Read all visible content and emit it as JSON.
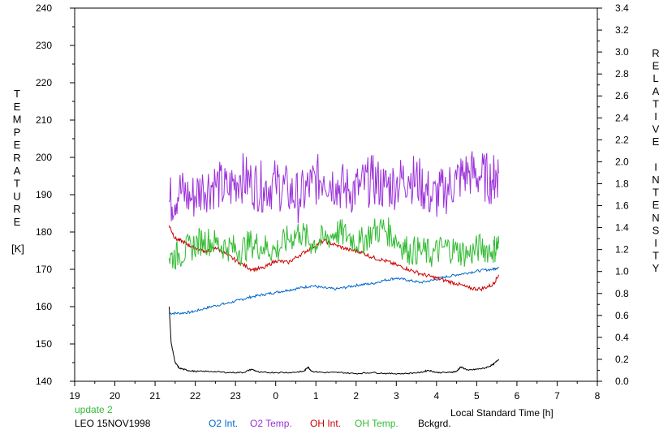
{
  "chart_data": {
    "type": "line",
    "title": "",
    "xlabel": "Local Standard Time [h]",
    "ylabel_left": "TEMPERATURE",
    "ylabel_left_unit": "[K]",
    "ylabel_right": "RELATIVE INTENSITY",
    "x_ticks": [
      "19",
      "20",
      "21",
      "22",
      "23",
      "0",
      "1",
      "2",
      "3",
      "4",
      "5",
      "6",
      "7",
      "8"
    ],
    "xlim": [
      19,
      32
    ],
    "ylim_left": [
      140,
      240
    ],
    "yticks_left": [
      "140",
      "150",
      "160",
      "170",
      "180",
      "190",
      "200",
      "210",
      "220",
      "230",
      "240"
    ],
    "ylim_right": [
      0.0,
      3.4
    ],
    "yticks_right": [
      "0.0",
      "0.2",
      "0.4",
      "0.6",
      "0.8",
      "1.0",
      "1.2",
      "1.4",
      "1.6",
      "1.8",
      "2.0",
      "2.2",
      "2.4",
      "2.6",
      "2.8",
      "3.0",
      "3.2",
      "3.4"
    ],
    "status_text": "update 2",
    "site_date": "LEO 15NOV1998",
    "series": [
      {
        "name": "O2 Int.",
        "axis": "right",
        "color": "#0066cc",
        "x": [
          21.35,
          21.6,
          21.9,
          22.2,
          22.5,
          22.8,
          23.1,
          23.4,
          23.7,
          24.0,
          24.3,
          24.6,
          24.9,
          25.2,
          25.5,
          25.8,
          26.1,
          26.4,
          26.7,
          27.0,
          27.3,
          27.6,
          27.9,
          28.2,
          28.5,
          28.8,
          29.1,
          29.4,
          29.55
        ],
        "y": [
          0.62,
          0.62,
          0.63,
          0.66,
          0.69,
          0.71,
          0.74,
          0.77,
          0.79,
          0.81,
          0.83,
          0.85,
          0.87,
          0.85,
          0.84,
          0.86,
          0.88,
          0.89,
          0.92,
          0.94,
          0.92,
          0.9,
          0.92,
          0.95,
          0.97,
          0.99,
          1.01,
          1.02,
          1.04
        ]
      },
      {
        "name": "O2 Temp.",
        "axis": "left",
        "color": "#9b30d9",
        "x": [
          21.35,
          21.6,
          21.9,
          22.2,
          22.5,
          22.8,
          23.1,
          23.4,
          23.7,
          24.0,
          24.3,
          24.6,
          24.9,
          25.2,
          25.5,
          25.8,
          26.1,
          26.4,
          26.7,
          27.0,
          27.3,
          27.6,
          27.9,
          28.2,
          28.5,
          28.8,
          29.1,
          29.4,
          29.55
        ],
        "y": [
          188,
          191,
          189,
          192,
          193,
          191,
          195,
          193,
          192,
          193,
          191,
          189,
          193,
          195,
          193,
          191,
          192,
          194,
          192,
          193,
          195,
          193,
          189,
          191,
          194,
          196,
          195,
          194,
          196
        ]
      },
      {
        "name": "OH Int.",
        "axis": "right",
        "color": "#cc0000",
        "x": [
          21.35,
          21.5,
          21.7,
          21.9,
          22.1,
          22.3,
          22.5,
          22.8,
          23.1,
          23.4,
          23.7,
          24.0,
          24.3,
          24.6,
          24.9,
          25.2,
          25.5,
          25.8,
          26.1,
          26.4,
          26.7,
          27.0,
          27.3,
          27.6,
          27.9,
          28.2,
          28.5,
          28.8,
          29.1,
          29.4,
          29.55
        ],
        "y": [
          1.42,
          1.3,
          1.27,
          1.23,
          1.2,
          1.18,
          1.22,
          1.15,
          1.08,
          1.02,
          1.03,
          1.1,
          1.08,
          1.15,
          1.22,
          1.28,
          1.24,
          1.2,
          1.18,
          1.13,
          1.1,
          1.06,
          1.02,
          0.98,
          0.95,
          0.92,
          0.89,
          0.85,
          0.84,
          0.88,
          0.97
        ]
      },
      {
        "name": "OH Temp.",
        "axis": "left",
        "color": "#33bb33",
        "x": [
          21.35,
          21.6,
          21.9,
          22.2,
          22.5,
          22.8,
          23.1,
          23.4,
          23.7,
          24.0,
          24.3,
          24.6,
          24.9,
          25.2,
          25.5,
          25.8,
          26.1,
          26.4,
          26.7,
          27.0,
          27.3,
          27.6,
          27.9,
          28.2,
          28.5,
          28.8,
          29.1,
          29.4,
          29.55
        ],
        "y": [
          173,
          174,
          176,
          178,
          177,
          176,
          175,
          177,
          176,
          175,
          178,
          180,
          177,
          178,
          180,
          179,
          177,
          180,
          181,
          178,
          175,
          175,
          174,
          176,
          175,
          174,
          176,
          175,
          177
        ]
      },
      {
        "name": "Bckgrd.",
        "axis": "right",
        "color": "#000000",
        "x": [
          21.35,
          21.4,
          21.5,
          21.6,
          21.8,
          22.0,
          22.4,
          22.8,
          23.2,
          23.4,
          23.6,
          24.0,
          24.4,
          24.7,
          24.8,
          24.9,
          25.2,
          25.6,
          26.0,
          26.4,
          26.8,
          27.2,
          27.6,
          27.8,
          28.0,
          28.3,
          28.5,
          28.6,
          28.8,
          29.0,
          29.2,
          29.4,
          29.55
        ],
        "y": [
          0.68,
          0.35,
          0.17,
          0.12,
          0.1,
          0.09,
          0.09,
          0.08,
          0.08,
          0.11,
          0.08,
          0.08,
          0.08,
          0.09,
          0.13,
          0.09,
          0.08,
          0.08,
          0.07,
          0.08,
          0.07,
          0.07,
          0.08,
          0.1,
          0.08,
          0.08,
          0.09,
          0.13,
          0.1,
          0.11,
          0.12,
          0.15,
          0.2
        ]
      }
    ]
  }
}
